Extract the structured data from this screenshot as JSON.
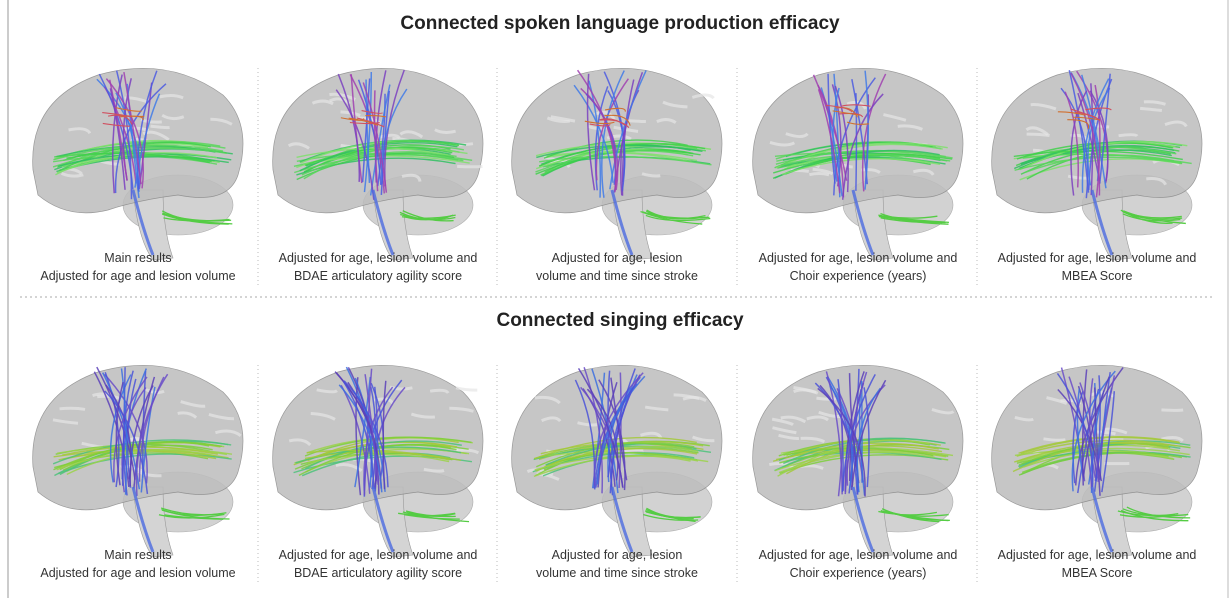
{
  "sections": [
    {
      "title": "Connected spoken language production efficacy",
      "panels": [
        {
          "caption": [
            "Main results",
            "Adjusted for age and lesion volume"
          ]
        },
        {
          "caption": [
            "Adjusted for age, lesion volume and",
            "BDAE articulatory agility score"
          ]
        },
        {
          "caption": [
            "Adjusted for age, lesion",
            "volume and time since stroke"
          ]
        },
        {
          "caption": [
            "Adjusted for age, lesion volume and",
            "Choir experience (years)"
          ]
        },
        {
          "caption": [
            "Adjusted for age, lesion volume and",
            "MBEA Score"
          ]
        }
      ]
    },
    {
      "title": "Connected singing efficacy",
      "panels": [
        {
          "caption": [
            "Main results",
            "Adjusted for age and lesion volume"
          ]
        },
        {
          "caption": [
            "Adjusted for age, lesion volume and",
            "BDAE articulatory agility score"
          ]
        },
        {
          "caption": [
            "Adjusted for age, lesion",
            "volume and time since stroke"
          ]
        },
        {
          "caption": [
            "Adjusted for age, lesion volume and",
            "Choir experience (years)"
          ]
        },
        {
          "caption": [
            "Adjusted for age, lesion volume and",
            "MBEA Score"
          ]
        }
      ]
    }
  ]
}
